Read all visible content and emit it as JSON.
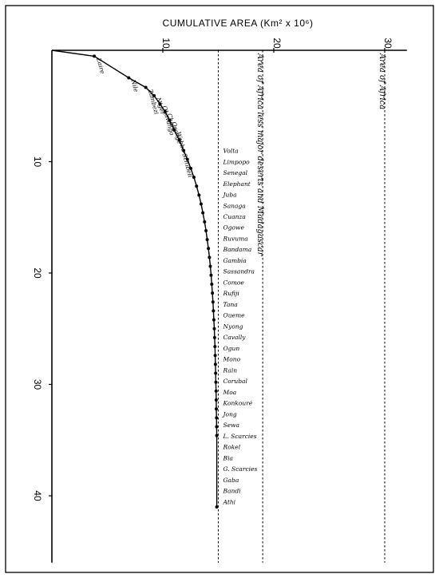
{
  "chart_data": {
    "type": "line",
    "title": "CUMULATIVE AREA (Km² x 10⁶)",
    "xlabel": "CUMULATIVE AREA (Km² x 10⁶)",
    "ylabel": "",
    "x_ticks": [
      "10",
      "20",
      "30"
    ],
    "y_ticks": [
      "10",
      "20",
      "30",
      "40"
    ],
    "xlim": [
      0,
      32
    ],
    "ylim": [
      0,
      46
    ],
    "grid": false,
    "reference_lines": [
      {
        "label": "Area of Africa less major deserts and Madagascar",
        "x": 19
      },
      {
        "label": "Area of Africa",
        "x": 30
      }
    ],
    "unlabeled_reference_x": 15,
    "series": [
      {
        "x": [
          0,
          3.82,
          6.93,
          8.46,
          9.21,
          9.75,
          10.2,
          10.6,
          11.02,
          11.49,
          11.88,
          12.21,
          12.52,
          12.8,
          13.04,
          13.26,
          13.45,
          13.61,
          13.76,
          13.89,
          14.0,
          14.11,
          14.2,
          14.28,
          14.35,
          14.41,
          14.47,
          14.52,
          14.56,
          14.6,
          14.64,
          14.67,
          14.7,
          14.72,
          14.74,
          14.76,
          14.78,
          14.8,
          14.81,
          14.82,
          14.84,
          14.85,
          14.86,
          14.86
        ],
        "y": [
          0,
          0.53,
          2.47,
          3.33,
          4.08,
          4.82,
          5.51,
          6.26,
          7.16,
          8.06,
          9.0,
          9.79,
          10.6,
          11.4,
          12.2,
          13.0,
          13.8,
          14.6,
          15.4,
          16.2,
          17.0,
          17.8,
          18.6,
          19.4,
          20.2,
          21.0,
          21.8,
          22.6,
          23.4,
          24.2,
          25.0,
          25.8,
          26.6,
          27.4,
          28.2,
          29.0,
          29.8,
          30.6,
          31.4,
          32.2,
          33.0,
          33.8,
          34.6,
          41.0
        ]
      }
    ],
    "rivers": [
      "Zaire",
      "Nile",
      "Zambezi",
      "Niger",
      "Okavango",
      "Chari",
      "Orange",
      "Webbe-Schibeli",
      "Volta",
      "Limpopo",
      "Senegal",
      "Elephant",
      "Juba",
      "Sanaga",
      "Cuanza",
      "Ogowe",
      "Ruvuma",
      "Bandama",
      "Gambia",
      "Sassandra",
      "Comoe",
      "Rufiji",
      "Tana",
      "Oueme",
      "Nyong",
      "Cavally",
      "Ogun",
      "Mono",
      "Rain",
      "Corubal",
      "Moa",
      "Konkouré",
      "Jong",
      "Sewa",
      "L. Scarcies",
      "Rokel",
      "Bia",
      "G. Scarcies",
      "Gaba",
      "Bandi",
      "Athi"
    ]
  }
}
